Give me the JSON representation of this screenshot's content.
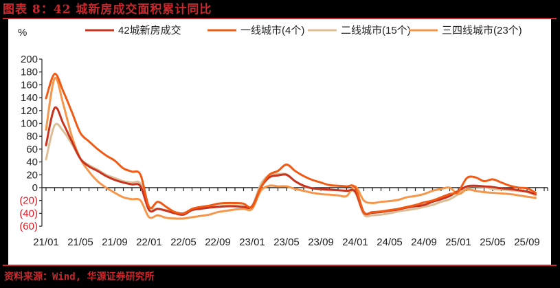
{
  "header": {
    "title": "图表 8：42 城新房成交面积累计同比"
  },
  "footer": {
    "source": "资料来源：Wind, 华源证券研究所"
  },
  "colors": {
    "accent": "#C8282D",
    "series_42": "#C8321E",
    "series_tier1": "#F05A14",
    "series_tier2": "#DCBE96",
    "series_tier34": "#F5964A",
    "negative_label": "#E8141E"
  },
  "chart_data": {
    "type": "line",
    "title": "42城新房成交面积累计同比",
    "ylabel": "%",
    "xlabel": "",
    "ylim": [
      -60,
      200
    ],
    "yticks": [
      200,
      180,
      160,
      140,
      120,
      100,
      80,
      60,
      40,
      20,
      0,
      -20,
      -40,
      -60
    ],
    "ytick_labels": [
      "200",
      "180",
      "160",
      "140",
      "120",
      "100",
      "80",
      "60",
      "40",
      "20",
      "0",
      "(20)",
      "(40)",
      "(60)"
    ],
    "xtick_labels": [
      "21/01",
      "21/05",
      "21/09",
      "22/01",
      "22/05",
      "22/09",
      "23/01",
      "23/05",
      "23/09",
      "24/01",
      "24/05",
      "24/09",
      "25/01",
      "25/05",
      "25/09"
    ],
    "legend_position": "top",
    "grid": false,
    "x": [
      "21/01",
      "21/02",
      "21/03",
      "21/04",
      "21/05",
      "21/06",
      "21/07",
      "21/08",
      "21/09",
      "21/10",
      "21/11",
      "21/12",
      "22/01",
      "22/02",
      "22/03",
      "22/04",
      "22/05",
      "22/06",
      "22/07",
      "22/08",
      "22/09",
      "22/10",
      "22/11",
      "22/12",
      "23/01",
      "23/02",
      "23/03",
      "23/04",
      "23/05",
      "23/06",
      "23/07",
      "23/08",
      "23/09",
      "23/10",
      "23/11",
      "23/12",
      "24/01",
      "24/02",
      "24/03",
      "24/04",
      "24/05",
      "24/06",
      "24/07",
      "24/08",
      "24/09",
      "24/10",
      "24/11",
      "24/12",
      "25/01",
      "25/02",
      "25/03",
      "25/04",
      "25/05",
      "25/06",
      "25/07",
      "25/08",
      "25/09",
      "25/10"
    ],
    "series": [
      {
        "name": "42城新房成交",
        "values": [
          66,
          124,
          100,
          72,
          45,
          33,
          26,
          18,
          12,
          8,
          5,
          2,
          -35,
          -33,
          -36,
          -40,
          -42,
          -35,
          -33,
          -31,
          -30,
          -29,
          -29,
          -30,
          -29,
          0,
          16,
          19,
          20,
          10,
          3,
          -1,
          -2,
          -3,
          -4,
          -5,
          -6,
          -39,
          -39,
          -38,
          -36,
          -34,
          -31,
          -29,
          -27,
          -22,
          -18,
          -13,
          -5,
          2,
          3,
          2,
          1,
          -1,
          -2,
          -4,
          -6,
          -10
        ]
      },
      {
        "name": "一线城市(4个)",
        "values": [
          139,
          177,
          150,
          118,
          85,
          72,
          60,
          50,
          42,
          30,
          25,
          20,
          -30,
          -22,
          -30,
          -38,
          -40,
          -33,
          -30,
          -28,
          -25,
          -24,
          -24,
          -25,
          -30,
          0,
          20,
          26,
          36,
          26,
          18,
          12,
          8,
          4,
          3,
          2,
          0,
          -38,
          -38,
          -37,
          -35,
          -33,
          -30,
          -27,
          -23,
          -20,
          -15,
          -10,
          -6,
          15,
          16,
          10,
          13,
          8,
          3,
          0,
          -1,
          -8
        ]
      },
      {
        "name": "二线城市(15个)",
        "values": [
          44,
          97,
          88,
          68,
          45,
          35,
          28,
          20,
          15,
          10,
          8,
          6,
          -30,
          -33,
          -35,
          -38,
          -40,
          -34,
          -32,
          -30,
          -29,
          -28,
          -28,
          -29,
          -28,
          5,
          20,
          21,
          21,
          10,
          2,
          -1,
          -3,
          -4,
          -4,
          -5,
          -8,
          -42,
          -43,
          -42,
          -40,
          -37,
          -35,
          -33,
          -30,
          -27,
          -22,
          -18,
          -10,
          1,
          2,
          1,
          -2,
          -3,
          -4,
          -5,
          -7,
          -12
        ]
      },
      {
        "name": "三四线城市(23个)",
        "values": [
          90,
          170,
          130,
          80,
          45,
          25,
          10,
          0,
          -8,
          -15,
          -18,
          -20,
          -46,
          -43,
          -47,
          -48,
          -48,
          -46,
          -44,
          -42,
          -38,
          -36,
          -34,
          -33,
          -33,
          -5,
          3,
          2,
          2,
          -2,
          -5,
          -8,
          -10,
          -11,
          -12,
          -13,
          2,
          -20,
          -24,
          -22,
          -21,
          -19,
          -15,
          -13,
          -10,
          -5,
          -2,
          0,
          -10,
          -3,
          -5,
          -7,
          -8,
          -9,
          -10,
          -12,
          -14,
          -16
        ]
      }
    ]
  }
}
